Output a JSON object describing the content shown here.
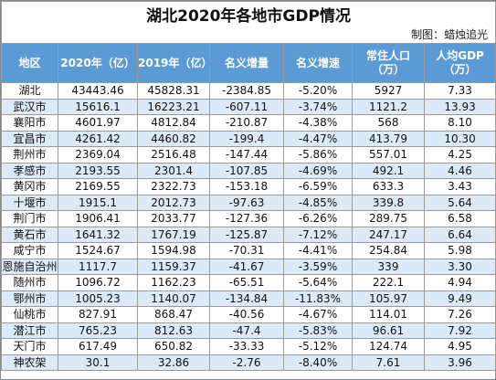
{
  "title": "湖北2020年各地市GDP情况",
  "credit": "制图：蜡烛追光",
  "headers": [
    "地区",
    "2020年（亿）",
    "2019年（亿）",
    "名义增量",
    "名义增速",
    "常住人口（万）",
    "人均GDP（万）"
  ],
  "rows": [
    [
      "湖北",
      "43443.46",
      "45828.31",
      "-2384.85",
      "-5.20%",
      "5927",
      "7.33"
    ],
    [
      "武汉市",
      "15616.1",
      "16223.21",
      "-607.11",
      "-3.74%",
      "1121.2",
      "13.93"
    ],
    [
      "襄阳市",
      "4601.97",
      "4812.84",
      "-210.87",
      "-4.38%",
      "568",
      "8.10"
    ],
    [
      "宜昌市",
      "4261.42",
      "4460.82",
      "-199.4",
      "-4.47%",
      "413.79",
      "10.30"
    ],
    [
      "荆州市",
      "2369.04",
      "2516.48",
      "-147.44",
      "-5.86%",
      "557.01",
      "4.25"
    ],
    [
      "孝感市",
      "2193.55",
      "2301.4",
      "-107.85",
      "-4.69%",
      "492.1",
      "4.46"
    ],
    [
      "黄冈市",
      "2169.55",
      "2322.73",
      "-153.18",
      "-6.59%",
      "633.3",
      "3.43"
    ],
    [
      "十堰市",
      "1915.1",
      "2012.73",
      "-97.63",
      "-4.85%",
      "339.8",
      "5.64"
    ],
    [
      "荆门市",
      "1906.41",
      "2033.77",
      "-127.36",
      "-6.26%",
      "289.75",
      "6.58"
    ],
    [
      "黄石市",
      "1641.32",
      "1767.19",
      "-125.87",
      "-7.12%",
      "247.17",
      "6.64"
    ],
    [
      "咸宁市",
      "1524.67",
      "1594.98",
      "-70.31",
      "-4.41%",
      "254.84",
      "5.98"
    ],
    [
      "恩施自治州",
      "1117.7",
      "1159.37",
      "-41.67",
      "-3.59%",
      "339",
      "3.30"
    ],
    [
      "随州市",
      "1096.72",
      "1162.23",
      "-65.51",
      "-5.64%",
      "222.1",
      "4.94"
    ],
    [
      "鄂州市",
      "1005.23",
      "1140.07",
      "-134.84",
      "-11.83%",
      "105.97",
      "9.49"
    ],
    [
      "仙桃市",
      "827.91",
      "868.47",
      "-40.56",
      "-4.67%",
      "114.01",
      "7.26"
    ],
    [
      "潜江市",
      "765.23",
      "812.63",
      "-47.4",
      "-5.83%",
      "96.61",
      "7.92"
    ],
    [
      "天门市",
      "617.49",
      "650.82",
      "-33.33",
      "-5.12%",
      "124.74",
      "4.95"
    ],
    [
      "神农架",
      "30.1",
      "32.86",
      "-2.76",
      "-8.40%",
      "7.61",
      "3.96"
    ]
  ]
}
